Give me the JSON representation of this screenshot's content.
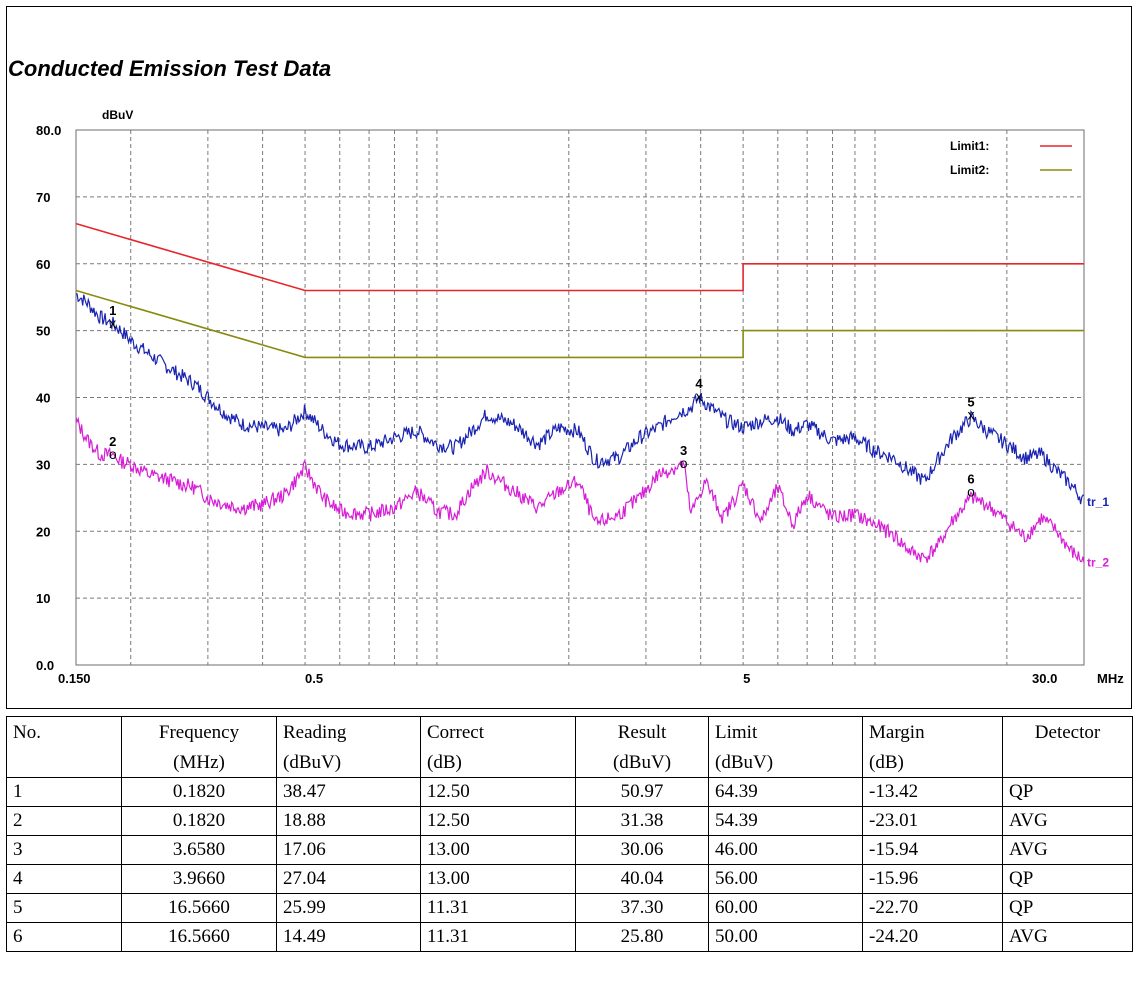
{
  "page_title": "Conducted Emission Test Data",
  "chart_data": {
    "type": "line",
    "x_scale": "log",
    "xlim": [
      0.15,
      30.0
    ],
    "ylim": [
      0.0,
      80.0
    ],
    "ylabel": "dBuV",
    "xlabel": "MHz",
    "y_ticks": [
      "0.0",
      "10",
      "20",
      "30",
      "40",
      "50",
      "60",
      "70",
      "80.0"
    ],
    "x_ticks": [
      {
        "value": 0.15,
        "label": "0.150"
      },
      {
        "value": 0.5,
        "label": "0.5"
      },
      {
        "value": 5,
        "label": "5"
      },
      {
        "value": 30.0,
        "label": "30.0"
      }
    ],
    "grid": true,
    "legend_position": "top-right",
    "series": [
      {
        "name": "Limit1:",
        "color": "#e8262a",
        "x": [
          0.15,
          0.5,
          0.5,
          5.0,
          5.0,
          30.0
        ],
        "y": [
          66.0,
          56.0,
          56.0,
          56.0,
          60.0,
          60.0
        ]
      },
      {
        "name": "Limit2:",
        "color": "#8a8a10",
        "x": [
          0.15,
          0.5,
          0.5,
          5.0,
          5.0,
          30.0
        ],
        "y": [
          56.0,
          46.0,
          46.0,
          46.0,
          50.0,
          50.0
        ]
      },
      {
        "name": "tr_1",
        "color": "#1a24b0",
        "x": [
          0.15,
          0.16,
          0.17,
          0.182,
          0.19,
          0.2,
          0.22,
          0.25,
          0.28,
          0.3,
          0.33,
          0.36,
          0.4,
          0.45,
          0.5,
          0.55,
          0.6,
          0.7,
          0.8,
          0.9,
          1.0,
          1.1,
          1.2,
          1.3,
          1.5,
          1.7,
          1.9,
          2.1,
          2.3,
          2.6,
          2.9,
          3.2,
          3.5,
          3.8,
          3.966,
          4.3,
          4.6,
          5.0,
          5.5,
          6.0,
          6.5,
          7.0,
          8.0,
          9.0,
          10.0,
          11.0,
          12.0,
          13.0,
          14.0,
          15.0,
          16.566,
          18.0,
          20.0,
          22.0,
          24.0,
          26.0,
          28.0,
          30.0
        ],
        "y": [
          55.5,
          54.0,
          52.0,
          51.0,
          50.0,
          48.5,
          46.5,
          44.0,
          42.0,
          40.0,
          37.5,
          36.0,
          35.5,
          35.0,
          38.0,
          35.0,
          33.0,
          32.5,
          34.0,
          35.0,
          33.0,
          32.5,
          35.0,
          37.5,
          36.0,
          33.0,
          35.5,
          35.0,
          30.5,
          31.0,
          34.0,
          35.5,
          37.5,
          38.5,
          40.0,
          38.0,
          36.5,
          35.5,
          36.5,
          37.0,
          35.0,
          36.0,
          33.5,
          34.0,
          32.0,
          31.0,
          29.0,
          27.5,
          31.0,
          34.0,
          37.0,
          35.0,
          33.0,
          31.0,
          31.5,
          29.0,
          27.0,
          24.5
        ]
      },
      {
        "name": "tr_2",
        "color": "#d61ed6",
        "x": [
          0.15,
          0.16,
          0.17,
          0.182,
          0.19,
          0.2,
          0.22,
          0.25,
          0.28,
          0.3,
          0.33,
          0.36,
          0.4,
          0.45,
          0.5,
          0.55,
          0.6,
          0.7,
          0.8,
          0.9,
          1.0,
          1.1,
          1.2,
          1.3,
          1.5,
          1.7,
          1.9,
          2.1,
          2.3,
          2.6,
          2.9,
          3.2,
          3.5,
          3.658,
          3.8,
          4.1,
          4.5,
          5.0,
          5.5,
          6.0,
          6.5,
          7.0,
          8.0,
          9.0,
          10.0,
          11.0,
          12.0,
          13.0,
          14.0,
          15.0,
          16.566,
          18.0,
          20.0,
          22.0,
          24.0,
          26.0,
          28.0,
          30.0
        ],
        "y": [
          36.5,
          33.5,
          31.5,
          31.4,
          30.5,
          30.0,
          28.5,
          27.5,
          26.5,
          25.0,
          24.0,
          23.5,
          24.0,
          25.5,
          29.5,
          25.0,
          23.0,
          22.5,
          23.5,
          26.0,
          23.0,
          22.5,
          26.5,
          29.0,
          26.0,
          23.5,
          26.0,
          27.5,
          21.0,
          22.5,
          25.0,
          28.5,
          29.5,
          30.1,
          22.5,
          27.5,
          22.0,
          27.0,
          21.5,
          26.5,
          21.0,
          25.5,
          22.0,
          22.5,
          21.0,
          19.5,
          17.0,
          16.0,
          18.0,
          21.5,
          25.0,
          24.0,
          21.5,
          19.0,
          22.0,
          20.0,
          17.0,
          15.5
        ]
      }
    ],
    "markers": [
      {
        "label": "1",
        "x": 0.182,
        "y": 50.97,
        "symbol": "x",
        "series": "tr_1"
      },
      {
        "label": "2",
        "x": 0.182,
        "y": 31.38,
        "symbol": "o",
        "series": "tr_2"
      },
      {
        "label": "3",
        "x": 3.658,
        "y": 30.06,
        "symbol": "o",
        "series": "tr_2"
      },
      {
        "label": "4",
        "x": 3.966,
        "y": 40.04,
        "symbol": "x",
        "series": "tr_1"
      },
      {
        "label": "5",
        "x": 16.566,
        "y": 37.3,
        "symbol": "x",
        "series": "tr_1"
      },
      {
        "label": "6",
        "x": 16.566,
        "y": 25.8,
        "symbol": "o",
        "series": "tr_2"
      }
    ]
  },
  "table": {
    "headers": [
      "No.",
      "Frequency",
      "Reading",
      "Correct",
      "Result",
      "Limit",
      "Margin",
      "Detector"
    ],
    "units": [
      "",
      "(MHz)",
      "(dBuV)",
      "(dB)",
      "(dBuV)",
      "(dBuV)",
      "(dB)",
      ""
    ],
    "rows": [
      [
        "1",
        "0.1820",
        "38.47",
        "12.50",
        "50.97",
        "64.39",
        "-13.42",
        "QP"
      ],
      [
        "2",
        "0.1820",
        "18.88",
        "12.50",
        "31.38",
        "54.39",
        "-23.01",
        "AVG"
      ],
      [
        "3",
        "3.6580",
        "17.06",
        "13.00",
        "30.06",
        "46.00",
        "-15.94",
        "AVG"
      ],
      [
        "4",
        "3.9660",
        "27.04",
        "13.00",
        "40.04",
        "56.00",
        "-15.96",
        "QP"
      ],
      [
        "5",
        "16.5660",
        "25.99",
        "11.31",
        "37.30",
        "60.00",
        "-22.70",
        "QP"
      ],
      [
        "6",
        "16.5660",
        "14.49",
        "11.31",
        "25.80",
        "50.00",
        "-24.20",
        "AVG"
      ]
    ]
  }
}
